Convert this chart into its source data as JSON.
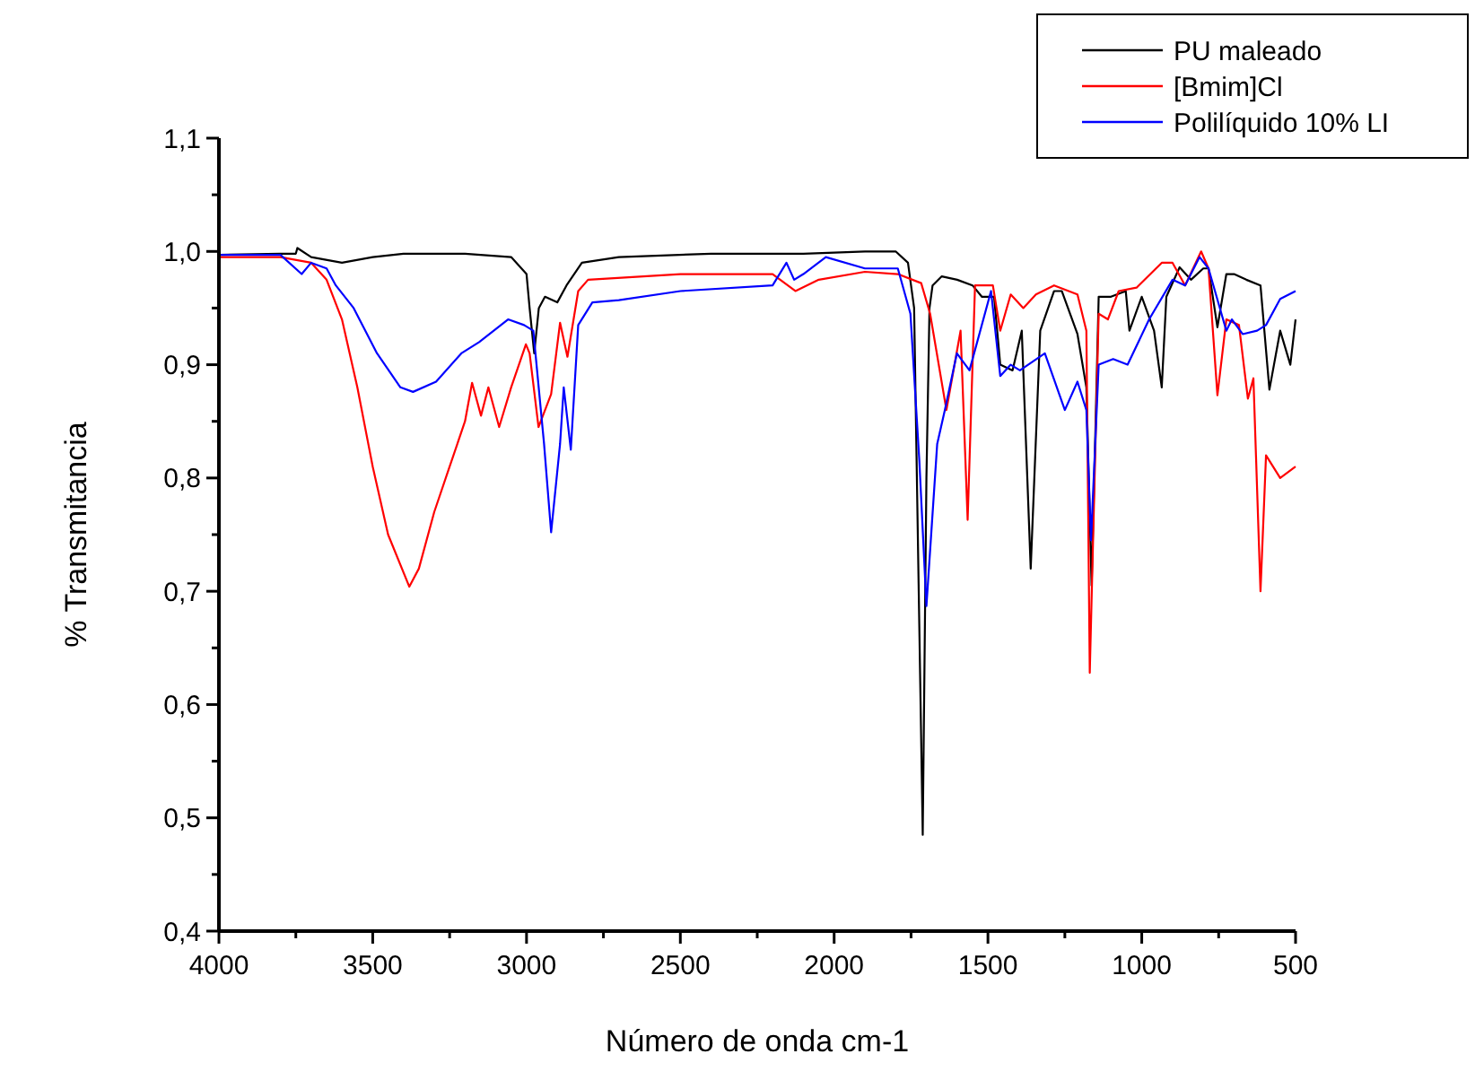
{
  "chart_data": {
    "type": "line",
    "xlabel": "Número de onda cm-1",
    "ylabel": "% Transmitancia",
    "xlim": [
      4000,
      500
    ],
    "ylim": [
      0.4,
      1.1
    ],
    "xticks": [
      4000,
      {
        "value": 3750,
        "label": null
      },
      {
        "value": 3500,
        "label": "3500"
      },
      {
        "value": 3250,
        "label": null
      },
      3000,
      {
        "value": 2750,
        "label": null
      },
      2500,
      {
        "value": 2250,
        "label": null
      },
      2000,
      {
        "value": 1750,
        "label": null
      },
      1500,
      {
        "value": 1250,
        "label": null
      },
      1000,
      {
        "value": 750,
        "label": null
      },
      500
    ],
    "yticks": [
      {
        "value": 0.4,
        "label": "0,4"
      },
      {
        "value": 0.45,
        "label": null
      },
      {
        "value": 0.5,
        "label": "0,5"
      },
      {
        "value": 0.55,
        "label": null
      },
      {
        "value": 0.6,
        "label": "0,6"
      },
      {
        "value": 0.65,
        "label": null
      },
      {
        "value": 0.7,
        "label": "0,7"
      },
      {
        "value": 0.75,
        "label": null
      },
      {
        "value": 0.8,
        "label": "0,8"
      },
      {
        "value": 0.85,
        "label": null
      },
      {
        "value": 0.9,
        "label": "0,9"
      },
      {
        "value": 0.95,
        "label": null
      },
      {
        "value": 1.0,
        "label": "1,0"
      },
      {
        "value": 1.05,
        "label": null
      },
      {
        "value": 1.1,
        "label": "1,1"
      }
    ],
    "legend": "top right",
    "grid": false,
    "marker": "none",
    "line_style": "solid",
    "series": [
      {
        "name": "PU maleado",
        "color": "#000000",
        "x": [
          4000,
          3800,
          3750,
          3745,
          3700,
          3600,
          3500,
          3400,
          3200,
          3050,
          3000,
          2990,
          2975,
          2960,
          2940,
          2900,
          2870,
          2820,
          2700,
          2400,
          2100,
          1900,
          1800,
          1760,
          1740,
          1725,
          1712,
          1700,
          1690,
          1680,
          1650,
          1600,
          1550,
          1520,
          1480,
          1460,
          1420,
          1390,
          1361,
          1330,
          1285,
          1260,
          1209,
          1180,
          1163,
          1140,
          1100,
          1052,
          1040,
          1000,
          960,
          935,
          920,
          877,
          840,
          800,
          783,
          754,
          725,
          700,
          660,
          614,
          585,
          550,
          517,
          500
        ],
        "values": [
          0.997,
          0.998,
          0.998,
          1.003,
          0.995,
          0.99,
          0.995,
          0.998,
          0.998,
          0.995,
          0.98,
          0.95,
          0.91,
          0.95,
          0.96,
          0.955,
          0.97,
          0.99,
          0.995,
          0.998,
          0.998,
          1.0,
          1.0,
          0.99,
          0.95,
          0.7,
          0.485,
          0.8,
          0.95,
          0.97,
          0.978,
          0.975,
          0.97,
          0.96,
          0.96,
          0.9,
          0.895,
          0.93,
          0.72,
          0.93,
          0.965,
          0.965,
          0.927,
          0.88,
          0.705,
          0.96,
          0.96,
          0.965,
          0.93,
          0.96,
          0.93,
          0.88,
          0.96,
          0.986,
          0.975,
          0.985,
          0.985,
          0.933,
          0.98,
          0.98,
          0.975,
          0.97,
          0.878,
          0.93,
          0.9,
          0.94
        ]
      },
      {
        "name": "[Bmim]Cl",
        "color": "#ff0000",
        "x": [
          4000,
          3800,
          3700,
          3650,
          3600,
          3550,
          3500,
          3450,
          3381,
          3350,
          3300,
          3250,
          3200,
          3177,
          3148,
          3124,
          3089,
          3050,
          3002,
          2990,
          2961,
          2920,
          2891,
          2867,
          2832,
          2800,
          2500,
          2200,
          2126,
          2050,
          1900,
          1793,
          1717,
          1688,
          1635,
          1589,
          1566,
          1542,
          1484,
          1460,
          1426,
          1385,
          1344,
          1285,
          1209,
          1180,
          1169,
          1140,
          1110,
          1075,
          1017,
          935,
          900,
          859,
          807,
          783,
          754,
          725,
          684,
          655,
          637,
          614,
          596,
          550,
          500
        ],
        "values": [
          0.995,
          0.995,
          0.99,
          0.975,
          0.94,
          0.88,
          0.81,
          0.75,
          0.704,
          0.72,
          0.77,
          0.81,
          0.85,
          0.884,
          0.855,
          0.88,
          0.845,
          0.88,
          0.918,
          0.91,
          0.845,
          0.874,
          0.937,
          0.907,
          0.965,
          0.975,
          0.98,
          0.98,
          0.965,
          0.975,
          0.982,
          0.98,
          0.972,
          0.945,
          0.86,
          0.93,
          0.763,
          0.97,
          0.97,
          0.93,
          0.962,
          0.95,
          0.962,
          0.97,
          0.962,
          0.93,
          0.628,
          0.945,
          0.94,
          0.965,
          0.968,
          0.99,
          0.99,
          0.97,
          1.0,
          0.985,
          0.873,
          0.94,
          0.935,
          0.87,
          0.888,
          0.7,
          0.82,
          0.8,
          0.81
        ]
      },
      {
        "name": "Polilíquido 10%  LI",
        "color": "#0000ff",
        "x": [
          4000,
          3800,
          3731,
          3700,
          3650,
          3620,
          3562,
          3486,
          3410,
          3369,
          3294,
          3212,
          3154,
          3060,
          3008,
          2978,
          2943,
          2920,
          2891,
          2879,
          2856,
          2832,
          2786,
          2700,
          2500,
          2200,
          2155,
          2130,
          2100,
          2027,
          1900,
          1793,
          1752,
          1723,
          1700,
          1665,
          1640,
          1601,
          1560,
          1490,
          1460,
          1426,
          1396,
          1315,
          1250,
          1209,
          1180,
          1165,
          1140,
          1093,
          1046,
          976,
          900,
          859,
          812,
          783,
          725,
          707,
          672,
          625,
          596,
          550,
          500
        ],
        "values": [
          0.997,
          0.997,
          0.98,
          0.99,
          0.985,
          0.97,
          0.95,
          0.91,
          0.88,
          0.876,
          0.885,
          0.91,
          0.92,
          0.94,
          0.935,
          0.93,
          0.83,
          0.752,
          0.83,
          0.88,
          0.825,
          0.935,
          0.955,
          0.957,
          0.965,
          0.97,
          0.99,
          0.975,
          0.98,
          0.995,
          0.985,
          0.985,
          0.945,
          0.815,
          0.687,
          0.83,
          0.86,
          0.91,
          0.895,
          0.965,
          0.89,
          0.9,
          0.895,
          0.91,
          0.86,
          0.885,
          0.86,
          0.745,
          0.9,
          0.905,
          0.9,
          0.94,
          0.975,
          0.97,
          0.995,
          0.985,
          0.93,
          0.94,
          0.927,
          0.93,
          0.935,
          0.958,
          0.965
        ]
      }
    ]
  }
}
